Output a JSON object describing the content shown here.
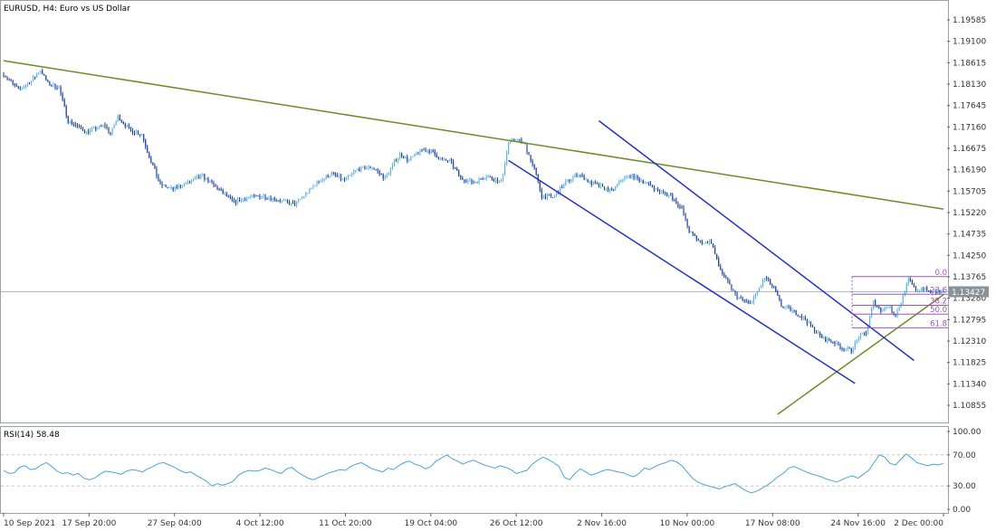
{
  "header": {
    "symbol": "EURUSD",
    "timeframe": "H4",
    "description": "Euro vs US Dollar",
    "title": "EURUSD, H4:  Euro vs US Dollar"
  },
  "rsi_panel": {
    "label": "RSI(14) 58.48",
    "levels": [
      "100.00",
      "70.00",
      "30.00",
      "0.00"
    ]
  },
  "fibonacci": {
    "labels": [
      "0.0",
      "23.6",
      "38.2",
      "50.0",
      "61.8"
    ]
  },
  "current_price_label": "1.13427",
  "colors": {
    "bull_candle": "#5ab4ea",
    "bear_candle": "#1a3f9a",
    "trendline": "#6b8e23",
    "channel": "#2233cc",
    "fibonacci": "#a055b8",
    "rsi_line": "#4aa3df",
    "current_price_line": "#b0b8c0"
  },
  "chart_data": [
    {
      "type": "candlestick",
      "title": "EURUSD, H4:  Euro vs US Dollar",
      "x_tick_labels": [
        "10 Sep 2021",
        "17 Sep 20:00",
        "27 Sep 04:00",
        "4 Oct 12:00",
        "11 Oct 20:00",
        "19 Oct 04:00",
        "26 Oct 12:00",
        "2 Nov 16:00",
        "10 Nov 00:00",
        "17 Nov 08:00",
        "24 Nov 16:00",
        "2 Dec 00:00"
      ],
      "y_tick_labels": [
        "1.19585",
        "1.19100",
        "1.18615",
        "1.18130",
        "1.17645",
        "1.17160",
        "1.16675",
        "1.16190",
        "1.15705",
        "1.15220",
        "1.14735",
        "1.14250",
        "1.13765",
        "1.13280",
        "1.12795",
        "1.12310",
        "1.11825",
        "1.11340",
        "1.10855"
      ],
      "ylim": [
        1.1045,
        1.2015
      ],
      "current_price": 1.13427,
      "price_path": [
        [
          0,
          1.1835
        ],
        [
          8,
          1.18
        ],
        [
          15,
          1.182
        ],
        [
          20,
          1.1845
        ],
        [
          24,
          1.1815
        ],
        [
          30,
          1.1805
        ],
        [
          35,
          1.173
        ],
        [
          45,
          1.1705
        ],
        [
          55,
          1.172
        ],
        [
          58,
          1.17
        ],
        [
          62,
          1.174
        ],
        [
          68,
          1.171
        ],
        [
          75,
          1.17
        ],
        [
          78,
          1.166
        ],
        [
          85,
          1.1585
        ],
        [
          92,
          1.1575
        ],
        [
          100,
          1.159
        ],
        [
          108,
          1.1605
        ],
        [
          115,
          1.158
        ],
        [
          125,
          1.1545
        ],
        [
          132,
          1.1555
        ],
        [
          140,
          1.156
        ],
        [
          150,
          1.155
        ],
        [
          158,
          1.154
        ],
        [
          163,
          1.156
        ],
        [
          170,
          1.159
        ],
        [
          178,
          1.161
        ],
        [
          185,
          1.1595
        ],
        [
          192,
          1.162
        ],
        [
          200,
          1.1625
        ],
        [
          207,
          1.16
        ],
        [
          215,
          1.1655
        ],
        [
          220,
          1.164
        ],
        [
          227,
          1.1665
        ],
        [
          232,
          1.166
        ],
        [
          238,
          1.164
        ],
        [
          242,
          1.164
        ],
        [
          248,
          1.16
        ],
        [
          255,
          1.159
        ],
        [
          262,
          1.1605
        ],
        [
          270,
          1.159
        ],
        [
          274,
          1.168
        ],
        [
          278,
          1.169
        ],
        [
          283,
          1.1675
        ],
        [
          288,
          1.162
        ],
        [
          292,
          1.156
        ],
        [
          298,
          1.1555
        ],
        [
          305,
          1.159
        ],
        [
          312,
          1.161
        ],
        [
          318,
          1.159
        ],
        [
          324,
          1.158
        ],
        [
          330,
          1.157
        ],
        [
          336,
          1.16
        ],
        [
          341,
          1.1605
        ],
        [
          348,
          1.159
        ],
        [
          356,
          1.157
        ],
        [
          362,
          1.156
        ],
        [
          368,
          1.153
        ],
        [
          372,
          1.148
        ],
        [
          378,
          1.1455
        ],
        [
          384,
          1.1455
        ],
        [
          388,
          1.14
        ],
        [
          392,
          1.137
        ],
        [
          398,
          1.133
        ],
        [
          405,
          1.1315
        ],
        [
          410,
          1.135
        ],
        [
          413,
          1.1375
        ],
        [
          418,
          1.135
        ],
        [
          422,
          1.131
        ],
        [
          428,
          1.13
        ],
        [
          435,
          1.128
        ],
        [
          440,
          1.1255
        ],
        [
          445,
          1.1235
        ],
        [
          450,
          1.123
        ],
        [
          455,
          1.1215
        ],
        [
          460,
          1.121
        ],
        [
          464,
          1.124
        ],
        [
          468,
          1.125
        ],
        [
          472,
          1.132
        ],
        [
          476,
          1.13
        ],
        [
          480,
          1.131
        ],
        [
          484,
          1.129
        ],
        [
          487,
          1.132
        ],
        [
          491,
          1.137
        ],
        [
          495,
          1.1345
        ],
        [
          499,
          1.135
        ],
        [
          504,
          1.134
        ],
        [
          510,
          1.1343
        ]
      ],
      "trendlines": [
        {
          "name": "resistance",
          "p1": [
            0,
            1.1866
          ],
          "p2": [
            510,
            1.153
          ]
        },
        {
          "name": "support",
          "p1": [
            420,
            1.1065
          ],
          "p2": [
            510,
            1.1336
          ]
        }
      ],
      "channel_lines": [
        {
          "p1": [
            274,
            1.164
          ],
          "p2": [
            462,
            1.1135
          ]
        },
        {
          "p1": [
            323,
            1.173
          ],
          "p2": [
            494,
            1.1187
          ]
        }
      ],
      "fibonacci_levels": [
        {
          "label": "0.0",
          "price": 1.1377
        },
        {
          "label": "23.6",
          "price": 1.1337
        },
        {
          "label": "38.2",
          "price": 1.1312
        },
        {
          "label": "50.0",
          "price": 1.1292
        },
        {
          "label": "61.8",
          "price": 1.1261
        }
      ]
    },
    {
      "type": "line",
      "title": "RSI(14) 58.48",
      "ylim": [
        0,
        100
      ],
      "levels": [
        70,
        30
      ],
      "y_tick_labels": [
        "100.00",
        "70.00",
        "30.00",
        "0.00"
      ],
      "last_value": 58.48,
      "values": [
        50,
        46,
        47,
        54,
        56,
        51,
        52,
        57,
        60,
        55,
        49,
        46,
        47,
        44,
        46,
        40,
        38,
        40,
        45,
        49,
        48,
        47,
        45,
        49,
        51,
        50,
        48,
        52,
        55,
        59,
        60,
        57,
        54,
        50,
        47,
        48,
        44,
        40,
        36,
        30,
        33,
        31,
        33,
        36,
        44,
        48,
        50,
        49,
        50,
        53,
        51,
        48,
        46,
        52,
        54,
        48,
        44,
        40,
        38,
        41,
        44,
        47,
        49,
        51,
        50,
        55,
        58,
        60,
        56,
        52,
        50,
        48,
        53,
        51,
        56,
        60,
        62,
        58,
        56,
        52,
        55,
        62,
        66,
        70,
        65,
        62,
        58,
        61,
        63,
        60,
        57,
        55,
        53,
        56,
        54,
        51,
        46,
        48,
        50,
        58,
        63,
        67,
        64,
        60,
        55,
        41,
        38,
        46,
        52,
        48,
        44,
        46,
        49,
        51,
        50,
        48,
        47,
        44,
        42,
        46,
        53,
        51,
        55,
        58,
        60,
        63,
        61,
        56,
        48,
        40,
        35,
        32,
        30,
        28,
        26,
        29,
        31,
        33,
        28,
        24,
        21,
        23,
        27,
        31,
        36,
        42,
        46,
        53,
        55,
        52,
        49,
        46,
        44,
        42,
        39,
        37,
        35,
        38,
        41,
        43,
        40,
        45,
        50,
        60,
        70,
        67,
        59,
        57,
        64,
        71,
        66,
        60,
        58,
        56,
        58,
        57,
        59
      ]
    }
  ]
}
